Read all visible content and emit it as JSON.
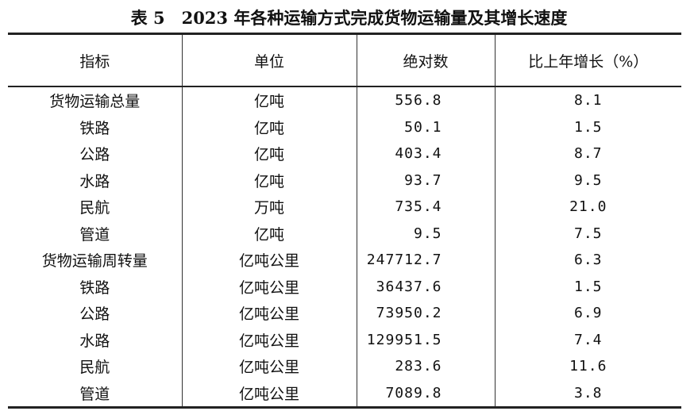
{
  "title": "表 5　2023 年各种运输方式完成货物运输量及其增长速度",
  "headers": {
    "indicator": "指标",
    "unit": "单位",
    "absolute": "绝对数",
    "growth": "比上年增长（%）"
  },
  "rows": [
    {
      "indicator": "货物运输总量",
      "unit": "亿吨",
      "absolute": "556.8",
      "growth": "8.1"
    },
    {
      "indicator": "铁路",
      "unit": "亿吨",
      "absolute": "50.1",
      "growth": "1.5"
    },
    {
      "indicator": "公路",
      "unit": "亿吨",
      "absolute": "403.4",
      "growth": "8.7"
    },
    {
      "indicator": "水路",
      "unit": "亿吨",
      "absolute": "93.7",
      "growth": "9.5"
    },
    {
      "indicator": "民航",
      "unit": "万吨",
      "absolute": "735.4",
      "growth": "21.0"
    },
    {
      "indicator": "管道",
      "unit": "亿吨",
      "absolute": "9.5",
      "growth": "7.5"
    },
    {
      "indicator": "货物运输周转量",
      "unit": "亿吨公里",
      "absolute": "247712.7",
      "growth": "6.3"
    },
    {
      "indicator": "铁路",
      "unit": "亿吨公里",
      "absolute": "36437.6",
      "growth": "1.5"
    },
    {
      "indicator": "公路",
      "unit": "亿吨公里",
      "absolute": "73950.2",
      "growth": "6.9"
    },
    {
      "indicator": "水路",
      "unit": "亿吨公里",
      "absolute": "129951.5",
      "growth": "7.4"
    },
    {
      "indicator": "民航",
      "unit": "亿吨公里",
      "absolute": "283.6",
      "growth": "11.6"
    },
    {
      "indicator": "管道",
      "unit": "亿吨公里",
      "absolute": "7089.8",
      "growth": "3.8"
    }
  ]
}
